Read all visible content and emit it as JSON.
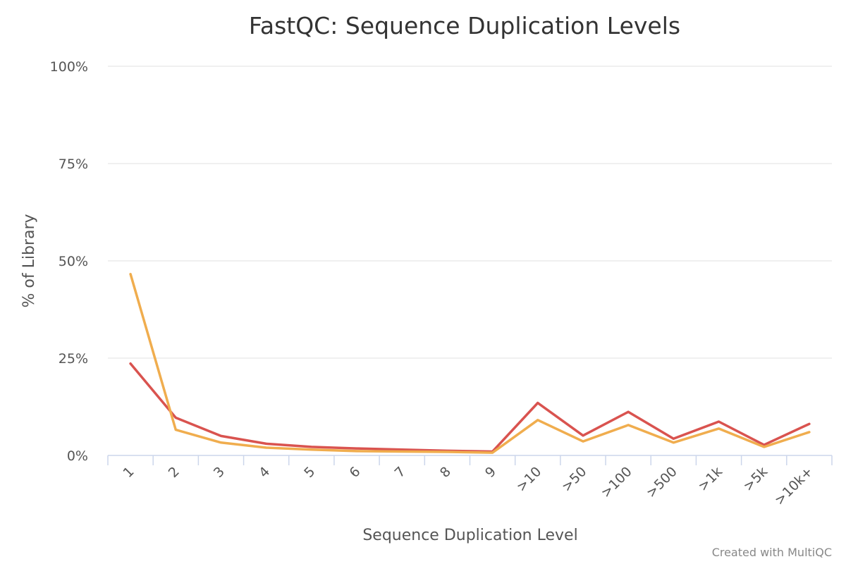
{
  "chart_data": {
    "type": "line",
    "title": "FastQC: Sequence Duplication Levels",
    "xlabel": "Sequence Duplication Level",
    "ylabel": "% of Library",
    "categories": [
      "1",
      "2",
      "3",
      "4",
      "5",
      "6",
      "7",
      "8",
      "9",
      ">10",
      ">50",
      ">100",
      ">500",
      ">1k",
      ">5k",
      ">10k+"
    ],
    "ylim": [
      0,
      100
    ],
    "yticks": [
      "0%",
      "25%",
      "50%",
      "75%",
      "100%"
    ],
    "ytick_values": [
      0,
      25,
      50,
      75,
      100
    ],
    "grid": true,
    "legend": "none",
    "series": [
      {
        "color": "#d9534f",
        "values": [
          23.6,
          9.7,
          5.0,
          3.0,
          2.2,
          1.8,
          1.5,
          1.2,
          1.0,
          13.5,
          5.1,
          11.2,
          4.3,
          8.7,
          2.7,
          8.1
        ]
      },
      {
        "color": "#f0ad4e",
        "values": [
          46.6,
          6.6,
          3.3,
          2.0,
          1.5,
          1.1,
          1.0,
          0.9,
          0.7,
          9.1,
          3.6,
          7.8,
          3.3,
          6.9,
          2.2,
          6.0
        ]
      }
    ]
  },
  "credit": "Created with MultiQC"
}
